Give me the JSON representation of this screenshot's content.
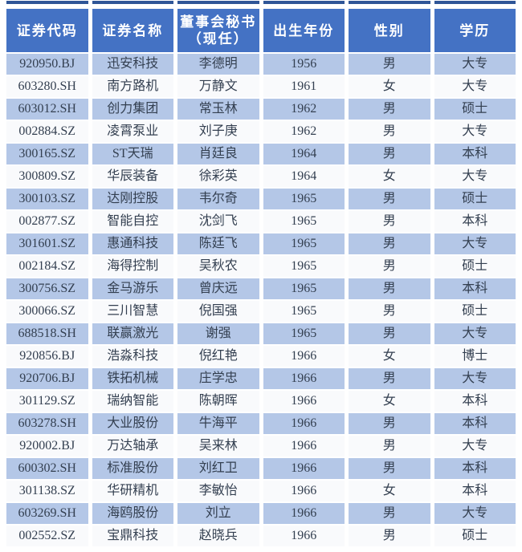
{
  "colors": {
    "header_bg": "#4472c4",
    "band_bg": "#b4c7e7",
    "plain_bg": "#f9fafc",
    "top_line": "#2f5597",
    "text": "#333f50",
    "header_text": "#ffffff",
    "page_bg": "#ffffff"
  },
  "table": {
    "columns": [
      {
        "label": "证券代码"
      },
      {
        "label": "证券名称"
      },
      {
        "label": "董事会秘书",
        "label2": "（现任）"
      },
      {
        "label": "出生年份"
      },
      {
        "label": "性别"
      },
      {
        "label": "学历"
      }
    ],
    "rows": [
      [
        "920950.BJ",
        "迅安科技",
        "李德明",
        "1956",
        "男",
        "大专"
      ],
      [
        "603280.SH",
        "南方路机",
        "万静文",
        "1961",
        "女",
        "大专"
      ],
      [
        "603012.SH",
        "创力集团",
        "常玉林",
        "1962",
        "男",
        "硕士"
      ],
      [
        "002884.SZ",
        "凌霄泵业",
        "刘子庚",
        "1962",
        "男",
        "大专"
      ],
      [
        "300165.SZ",
        "ST天瑞",
        "肖廷良",
        "1964",
        "男",
        "本科"
      ],
      [
        "300809.SZ",
        "华辰装备",
        "徐彩英",
        "1964",
        "女",
        "大专"
      ],
      [
        "300103.SZ",
        "达刚控股",
        "韦尔奇",
        "1965",
        "男",
        "硕士"
      ],
      [
        "002877.SZ",
        "智能自控",
        "沈剑飞",
        "1965",
        "男",
        "本科"
      ],
      [
        "301601.SZ",
        "惠通科技",
        "陈廷飞",
        "1965",
        "男",
        "大专"
      ],
      [
        "002184.SZ",
        "海得控制",
        "吴秋农",
        "1965",
        "男",
        "硕士"
      ],
      [
        "300756.SZ",
        "金马游乐",
        "曾庆远",
        "1965",
        "男",
        "本科"
      ],
      [
        "300066.SZ",
        "三川智慧",
        "倪国强",
        "1965",
        "男",
        "硕士"
      ],
      [
        "688518.SH",
        "联赢激光",
        "谢强",
        "1965",
        "男",
        "大专"
      ],
      [
        "920856.BJ",
        "浩淼科技",
        "倪红艳",
        "1966",
        "女",
        "博士"
      ],
      [
        "920706.BJ",
        "铁拓机械",
        "庄学忠",
        "1966",
        "男",
        "大专"
      ],
      [
        "301129.SZ",
        "瑞纳智能",
        "陈朝晖",
        "1966",
        "女",
        "本科"
      ],
      [
        "603278.SH",
        "大业股份",
        "牛海平",
        "1966",
        "男",
        "本科"
      ],
      [
        "920002.BJ",
        "万达轴承",
        "吴来林",
        "1966",
        "男",
        "大专"
      ],
      [
        "600302.SH",
        "标准股份",
        "刘红卫",
        "1966",
        "男",
        "本科"
      ],
      [
        "301138.SZ",
        "华研精机",
        "李敏怡",
        "1966",
        "女",
        "本科"
      ],
      [
        "603269.SH",
        "海鸥股份",
        "刘立",
        "1966",
        "男",
        "大专"
      ],
      [
        "002552.SZ",
        "宝鼎科技",
        "赵晓兵",
        "1966",
        "男",
        "硕士"
      ]
    ]
  }
}
